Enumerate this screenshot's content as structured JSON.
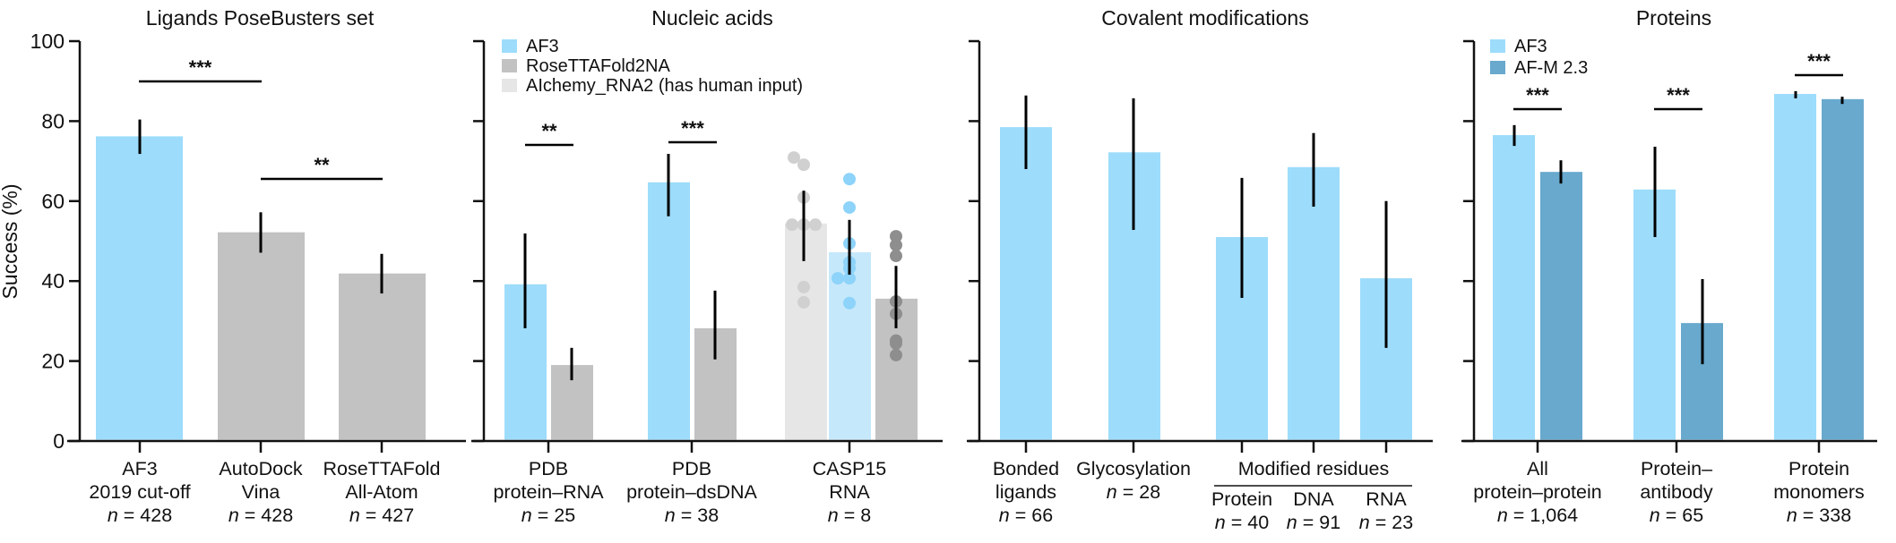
{
  "chart_data": [
    {
      "type": "bar",
      "title": "Ligands PoseBusters set",
      "ylabel": "Success (%)",
      "ylim": [
        0,
        100
      ],
      "yticks": [
        0,
        20,
        40,
        60,
        80,
        100
      ],
      "categories": [
        {
          "lines": [
            "AF3",
            "2019 cut-off"
          ],
          "n": "n = 428"
        },
        {
          "lines": [
            "AutoDock",
            "Vina"
          ],
          "n": "n = 428"
        },
        {
          "lines": [
            "RoseTTAFold",
            "All-Atom"
          ],
          "n": "n = 427"
        }
      ],
      "bars": [
        {
          "category": 0,
          "series": "AF3",
          "value": 76.2,
          "err": [
            71.8,
            80.4
          ]
        },
        {
          "category": 1,
          "series": "Other",
          "value": 52.2,
          "err": [
            47.1,
            57.2
          ]
        },
        {
          "category": 2,
          "series": "Other",
          "value": 41.9,
          "err": [
            36.9,
            46.8
          ]
        }
      ],
      "significance": [
        {
          "from": 0,
          "to": 1,
          "label": "***",
          "level": 90
        },
        {
          "from": 1,
          "to": 2,
          "label": "**",
          "level": 65
        }
      ]
    },
    {
      "type": "bar",
      "title": "Nucleic acids",
      "ylim": [
        0,
        100
      ],
      "legend": [
        {
          "label": "AF3",
          "color": "#9ddcfb"
        },
        {
          "label": "RoseTTAFold2NA",
          "color": "#c2c2c2"
        },
        {
          "label": "AIchemy_RNA2 (has human input)",
          "color": "#e6e6e6"
        }
      ],
      "legend_position": "top-left",
      "categories": [
        {
          "lines": [
            "PDB",
            "protein–RNA"
          ],
          "n": "n = 25"
        },
        {
          "lines": [
            "PDB",
            "protein–dsDNA"
          ],
          "n": "n = 38"
        },
        {
          "lines": [
            "CASP15",
            "RNA"
          ],
          "n": "n = 8"
        }
      ],
      "bars": [
        {
          "category": 0,
          "series": "AF3",
          "value": 39.2,
          "err": [
            28.2,
            51.9
          ]
        },
        {
          "category": 0,
          "series": "RoseTTAFold2NA",
          "value": 19.0,
          "err": [
            15.2,
            23.3
          ]
        },
        {
          "category": 1,
          "series": "AF3",
          "value": 64.7,
          "err": [
            56.2,
            71.8
          ]
        },
        {
          "category": 1,
          "series": "RoseTTAFold2NA",
          "value": 28.2,
          "err": [
            20.4,
            37.6
          ]
        },
        {
          "category": 2,
          "series": "AIchemy_RNA2",
          "value": 54.4,
          "err": [
            45.0,
            62.6
          ],
          "points": [
            70.9,
            69.1,
            60.9,
            54.1,
            54.1,
            54.1,
            38.5,
            34.7
          ]
        },
        {
          "category": 2,
          "series": "AF3",
          "value": 47.2,
          "err": [
            41.6,
            55.3
          ],
          "points": [
            65.5,
            58.4,
            49.4,
            44.7,
            43.2,
            40.7,
            40.7,
            34.5
          ]
        },
        {
          "category": 2,
          "series": "RoseTTAFold2NA",
          "value": 35.6,
          "err": [
            28.2,
            43.8
          ],
          "points": [
            51.2,
            49.0,
            46.3,
            34.9,
            31.8,
            25.1,
            24.4,
            21.5
          ]
        }
      ],
      "significance": [
        {
          "category": 0,
          "label": "**"
        },
        {
          "category": 1,
          "label": "***"
        }
      ]
    },
    {
      "type": "bar",
      "title": "Covalent modifications",
      "ylim": [
        0,
        100
      ],
      "categories": [
        {
          "lines": [
            "Bonded",
            "ligands"
          ],
          "n": "n = 66"
        },
        {
          "lines": [
            "Glycosylation"
          ],
          "n": "n = 28"
        },
        {
          "lines": [
            "Protein"
          ],
          "n": "n = 40"
        },
        {
          "lines": [
            "DNA"
          ],
          "n": "n = 91"
        },
        {
          "lines": [
            "RNA"
          ],
          "n": "n = 23"
        }
      ],
      "group_label": "Modified residues",
      "bars": [
        {
          "category": 0,
          "series": "AF3",
          "value": 78.5,
          "err": [
            68.0,
            86.4
          ]
        },
        {
          "category": 1,
          "series": "AF3",
          "value": 72.2,
          "err": [
            52.8,
            85.7
          ]
        },
        {
          "category": 2,
          "series": "AF3",
          "value": 51.0,
          "err": [
            35.8,
            65.8
          ]
        },
        {
          "category": 3,
          "series": "AF3",
          "value": 68.5,
          "err": [
            58.6,
            77.0
          ]
        },
        {
          "category": 4,
          "series": "AF3",
          "value": 40.7,
          "err": [
            23.3,
            60.0
          ]
        }
      ]
    },
    {
      "type": "bar",
      "title": "Proteins",
      "ylim": [
        0,
        100
      ],
      "legend": [
        {
          "label": "AF3",
          "color": "#9ddcfb"
        },
        {
          "label": "AF-M 2.3",
          "color": "#68a9cd"
        }
      ],
      "legend_position": "top-left",
      "categories": [
        {
          "lines": [
            "All",
            "protein–protein"
          ],
          "n": "n = 1,064"
        },
        {
          "lines": [
            "Protein–",
            "antibody"
          ],
          "n": "n = 65"
        },
        {
          "lines": [
            "Protein",
            "monomers"
          ],
          "n": "n = 338"
        }
      ],
      "bars": [
        {
          "category": 0,
          "series": "AF3",
          "value": 76.5,
          "err": [
            73.8,
            79.0
          ]
        },
        {
          "category": 0,
          "series": "AF-M 2.3",
          "value": 67.3,
          "err": [
            64.4,
            70.2
          ]
        },
        {
          "category": 1,
          "series": "AF3",
          "value": 62.9,
          "err": [
            51.0,
            73.6
          ]
        },
        {
          "category": 1,
          "series": "AF-M 2.3",
          "value": 29.5,
          "err": [
            19.2,
            40.5
          ]
        },
        {
          "category": 2,
          "series": "AF3",
          "value": 86.8,
          "err": [
            85.7,
            87.5
          ]
        },
        {
          "category": 2,
          "series": "AF-M 2.3",
          "value": 85.5,
          "err": [
            84.3,
            86.1
          ]
        }
      ],
      "significance": [
        {
          "category": 0,
          "label": "***"
        },
        {
          "category": 1,
          "label": "***"
        },
        {
          "category": 2,
          "label": "***"
        }
      ]
    }
  ],
  "colors": {
    "af3": "#9ddcfb",
    "af3_light": "#c6e8fb",
    "gray": "#c2c2c2",
    "light_gray": "#e6e6e6",
    "afm": "#68a9cd",
    "dot_light": "#d0d0d0",
    "dot_blue": "#8dd3fa",
    "dot_dark": "#8e8e8e"
  }
}
